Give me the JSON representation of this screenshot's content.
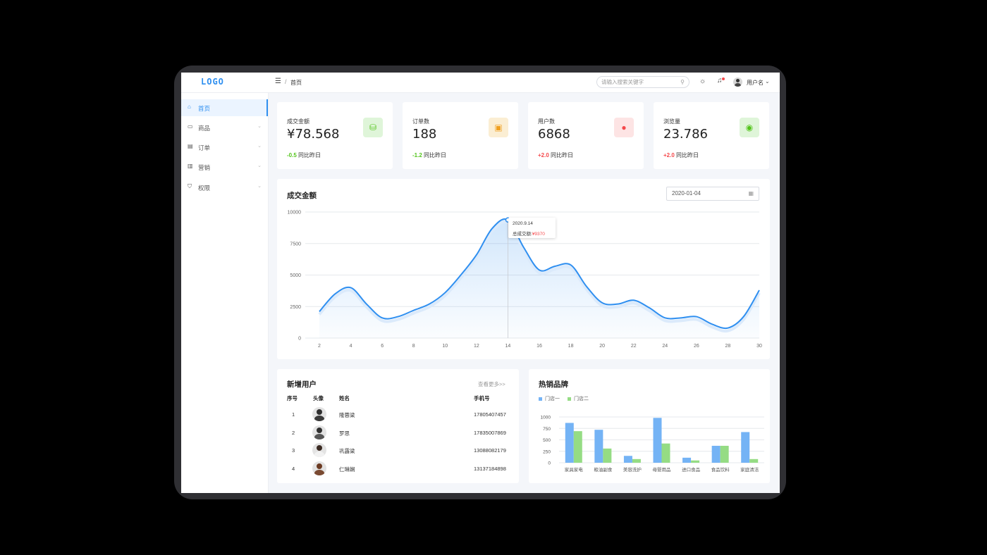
{
  "header": {
    "logo": "LOGO",
    "menu_icon": "menu-icon",
    "breadcrumb_sep": "/",
    "breadcrumb": "首页",
    "search_placeholder": "请输入搜索关键字",
    "username": "用户名"
  },
  "sidebar": {
    "items": [
      {
        "label": "首页",
        "icon": "home-icon",
        "active": true
      },
      {
        "label": "商品",
        "icon": "shop-icon"
      },
      {
        "label": "订单",
        "icon": "order-icon"
      },
      {
        "label": "营销",
        "icon": "marketing-icon"
      },
      {
        "label": "权限",
        "icon": "shield-icon"
      }
    ]
  },
  "stats": [
    {
      "title": "成交金额",
      "value": "¥78.568",
      "delta": "-0.5",
      "delta_label": "同比昨日",
      "delta_color": "#52c41a",
      "icon_bg": "#dff5d9",
      "icon_color": "#52c41a",
      "icon": "coins-icon"
    },
    {
      "title": "订单数",
      "value": "188",
      "delta": "-1.2",
      "delta_label": "同比昨日",
      "delta_color": "#52c41a",
      "icon_bg": "#fbeed3",
      "icon_color": "#f0a020",
      "icon": "clipboard-icon"
    },
    {
      "title": "用户数",
      "value": "6868",
      "delta": "+2.0",
      "delta_label": "同比昨日",
      "delta_color": "#f5484b",
      "icon_bg": "#fde4e4",
      "icon_color": "#f5484b",
      "icon": "user-icon"
    },
    {
      "title": "浏览量",
      "value": "23.786",
      "delta": "+2.0",
      "delta_label": "同比昨日",
      "delta_color": "#f5484b",
      "icon_bg": "#dff5d9",
      "icon_color": "#52c41a",
      "icon": "eye-icon"
    }
  ],
  "line_section": {
    "title": "成交金额",
    "date": "2020-01-04",
    "tooltip_date": "2020.9.14",
    "tooltip_label": "总成交额:",
    "tooltip_value": "¥9370"
  },
  "users_section": {
    "title": "新增用户",
    "more": "查看更多>>",
    "columns": [
      "序号",
      "头像",
      "姓名",
      "手机号"
    ],
    "rows": [
      {
        "idx": "1",
        "name": "隆蓉梁",
        "phone": "17805407457"
      },
      {
        "idx": "2",
        "name": "罗思",
        "phone": "17835007869"
      },
      {
        "idx": "3",
        "name": "巩露梁",
        "phone": "13088082179"
      },
      {
        "idx": "4",
        "name": "仁琳娴",
        "phone": "13137184898"
      }
    ]
  },
  "brand_section": {
    "title": "热销品牌"
  },
  "chart_data": [
    {
      "type": "area",
      "title": "成交金额",
      "x": [
        2,
        3,
        4,
        5,
        6,
        7,
        8,
        9,
        10,
        11,
        12,
        13,
        14,
        15,
        16,
        17,
        18,
        19,
        20,
        21,
        22,
        23,
        24,
        25,
        26,
        27,
        28,
        29,
        30
      ],
      "values": [
        2100,
        3500,
        4000,
        2700,
        1600,
        1700,
        2200,
        2700,
        3600,
        5000,
        6600,
        8700,
        9370,
        7200,
        5400,
        5700,
        5800,
        4100,
        2800,
        2700,
        3000,
        2400,
        1600,
        1600,
        1700,
        1100,
        800,
        1700,
        3800
      ],
      "xticks": [
        "2",
        "4",
        "6",
        "8",
        "10",
        "12",
        "14",
        "16",
        "18",
        "20",
        "22",
        "24",
        "26",
        "28",
        "30"
      ],
      "yticks": [
        "0",
        "2500",
        "5000",
        "7500",
        "10000"
      ],
      "ylim": [
        0,
        10000
      ],
      "xlim": [
        2,
        30
      ],
      "color": "#2f8ff0",
      "grid": true,
      "highlight_x": 14
    },
    {
      "type": "bar",
      "categories": [
        "家具家电",
        "粮油副食",
        "美容洗护",
        "母婴用品",
        "进口食品",
        "食品饮料",
        "家庭清洁"
      ],
      "series": [
        {
          "name": "门店一",
          "values": [
            870,
            720,
            150,
            980,
            110,
            370,
            670
          ],
          "color": "#74b3f5"
        },
        {
          "name": "门店二",
          "values": [
            690,
            310,
            80,
            420,
            50,
            370,
            80
          ],
          "color": "#95dc84"
        }
      ],
      "yticks": [
        "0",
        "250",
        "500",
        "750",
        "1000"
      ],
      "ylim": [
        0,
        1000
      ],
      "legend": "top-left",
      "grid": true
    }
  ]
}
